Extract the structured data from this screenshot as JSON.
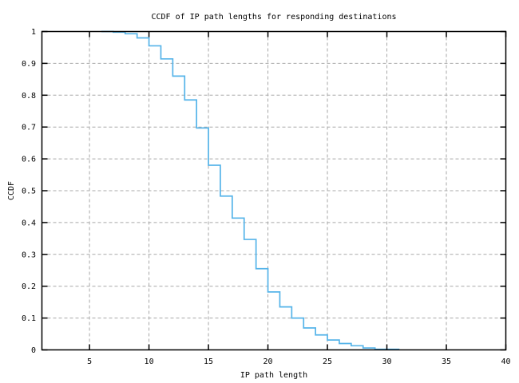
{
  "figure": {
    "background": "#ffffff"
  },
  "chart_data": {
    "type": "line",
    "line_style": "steps",
    "title": "CCDF of IP path lengths for responding destinations",
    "xlabel": "IP path length",
    "ylabel": "CCDF",
    "xlim": [
      1,
      40
    ],
    "ylim": [
      0,
      1
    ],
    "grid": true,
    "legend": "none",
    "xticks": [
      5,
      10,
      15,
      20,
      25,
      30,
      35,
      40
    ],
    "yticks": [
      0,
      0.1,
      0.2,
      0.3,
      0.4,
      0.5,
      0.6,
      0.7,
      0.8,
      0.9,
      1
    ],
    "ytick_labels": [
      "0",
      "0.1",
      "0.2",
      "0.3",
      "0.4",
      "0.5",
      "0.6",
      "0.7",
      "0.8",
      "0.9",
      "1"
    ],
    "series": [
      {
        "name": "ccdf-of-ip-path-lengths",
        "color": "#56b4e9",
        "x": [
          6,
          7,
          8,
          9,
          10,
          11,
          12,
          13,
          14,
          15,
          16,
          17,
          18,
          19,
          20,
          21,
          22,
          23,
          24,
          25,
          26,
          27,
          28,
          29,
          30,
          31
        ],
        "y": [
          1.0,
          0.998,
          0.993,
          0.98,
          0.955,
          0.914,
          0.86,
          0.785,
          0.697,
          0.58,
          0.483,
          0.414,
          0.347,
          0.255,
          0.182,
          0.135,
          0.1,
          0.069,
          0.047,
          0.031,
          0.02,
          0.013,
          0.006,
          0.002,
          0.002,
          0.0
        ]
      }
    ]
  },
  "style": {
    "axis_color": "#000000",
    "grid_color": "#a8a8a8",
    "text_color": "#000000",
    "line_color": "#56b4e9"
  }
}
